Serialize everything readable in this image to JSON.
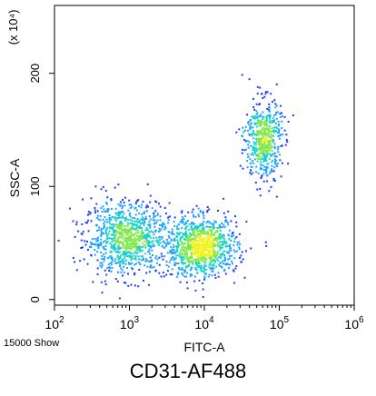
{
  "chart_data": {
    "type": "scatter",
    "subtype": "flow-cytometry-density-dot-plot",
    "xlabel": "FITC-A",
    "ylabel": "SSC-A",
    "y_multiplier": "(x 10⁴)",
    "x_scale": "log",
    "x_range": [
      100,
      1000000
    ],
    "y_range": [
      -5,
      260
    ],
    "x_ticks": [
      {
        "value": 100,
        "base": "10",
        "exp": "2"
      },
      {
        "value": 1000,
        "base": "10",
        "exp": "3"
      },
      {
        "value": 10000,
        "base": "10",
        "exp": "4"
      },
      {
        "value": 100000,
        "base": "10",
        "exp": "5"
      },
      {
        "value": 1000000,
        "base": "10",
        "exp": "6"
      }
    ],
    "y_ticks": [
      {
        "value": 0,
        "label": "0"
      },
      {
        "value": 100,
        "label": "100"
      },
      {
        "value": 200,
        "label": "200"
      }
    ],
    "populations": [
      {
        "center_fitc": 900,
        "center_ssc": 55,
        "spread_log_x": 0.28,
        "spread_y": 16,
        "share": 0.38
      },
      {
        "center_fitc": 9000,
        "center_ssc": 47,
        "spread_log_x": 0.24,
        "spread_y": 13,
        "share": 0.4
      },
      {
        "center_fitc": 60000,
        "center_ssc": 142,
        "spread_log_x": 0.12,
        "spread_y": 18,
        "share": 0.22
      }
    ],
    "density_colors": [
      "#1e3cff",
      "#1fa3ff",
      "#19d1c8",
      "#7fe84a",
      "#f2f21c"
    ],
    "grid": false,
    "legend": "none"
  },
  "footer": {
    "event_count": "15000 Show",
    "caption": "CD31-AF488"
  }
}
